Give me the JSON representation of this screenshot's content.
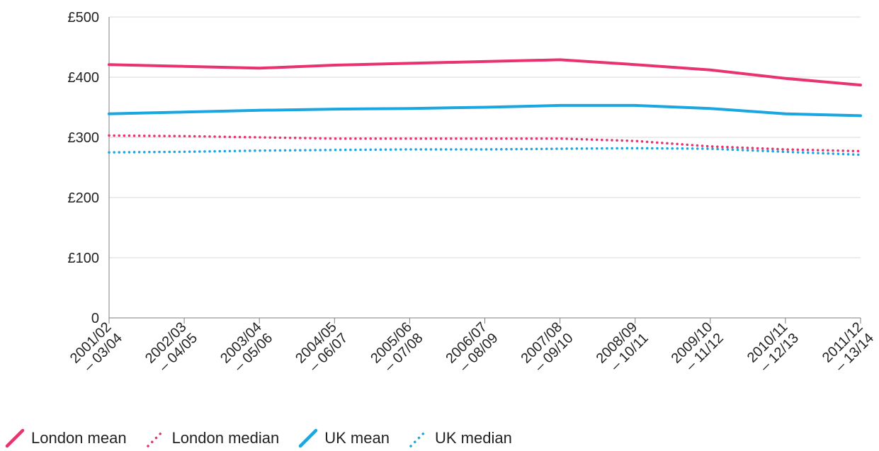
{
  "chart_data": {
    "type": "line",
    "title": "",
    "xlabel": "",
    "ylabel": "",
    "categories": [
      [
        "2001/02",
        "– 03/04"
      ],
      [
        "2002/03",
        "– 04/05"
      ],
      [
        "2003/04",
        "– 05/06"
      ],
      [
        "2004/05",
        "– 06/07"
      ],
      [
        "2005/06",
        "– 07/08"
      ],
      [
        "2006/07",
        "– 08/09"
      ],
      [
        "2007/08",
        "– 09/10"
      ],
      [
        "2008/09",
        "– 10/11"
      ],
      [
        "2009/10",
        "– 11/12"
      ],
      [
        "2010/11",
        "– 12/13"
      ],
      [
        "2011/12",
        "– 13/14"
      ]
    ],
    "ylim": [
      0,
      500
    ],
    "yticks": [
      0,
      100,
      200,
      300,
      400,
      500
    ],
    "ytick_labels": [
      "0",
      "£100",
      "£200",
      "£300",
      "£400",
      "£500"
    ],
    "grid": "horizontal",
    "legend_position": "bottom-left",
    "series": [
      {
        "name": "London mean",
        "color": "#e8336e",
        "style": "solid",
        "values": [
          421,
          418,
          415,
          420,
          423,
          426,
          429,
          421,
          412,
          398,
          387
        ]
      },
      {
        "name": "London median",
        "color": "#e8336e",
        "style": "dotted",
        "values": [
          303,
          302,
          300,
          298,
          298,
          298,
          298,
          294,
          285,
          280,
          277
        ]
      },
      {
        "name": "UK mean",
        "color": "#1aa7e0",
        "style": "solid",
        "values": [
          339,
          342,
          345,
          347,
          348,
          350,
          353,
          353,
          348,
          339,
          336
        ]
      },
      {
        "name": "UK median",
        "color": "#1aa7e0",
        "style": "dotted",
        "values": [
          275,
          276,
          278,
          279,
          280,
          280,
          281,
          282,
          281,
          276,
          271
        ]
      }
    ]
  }
}
